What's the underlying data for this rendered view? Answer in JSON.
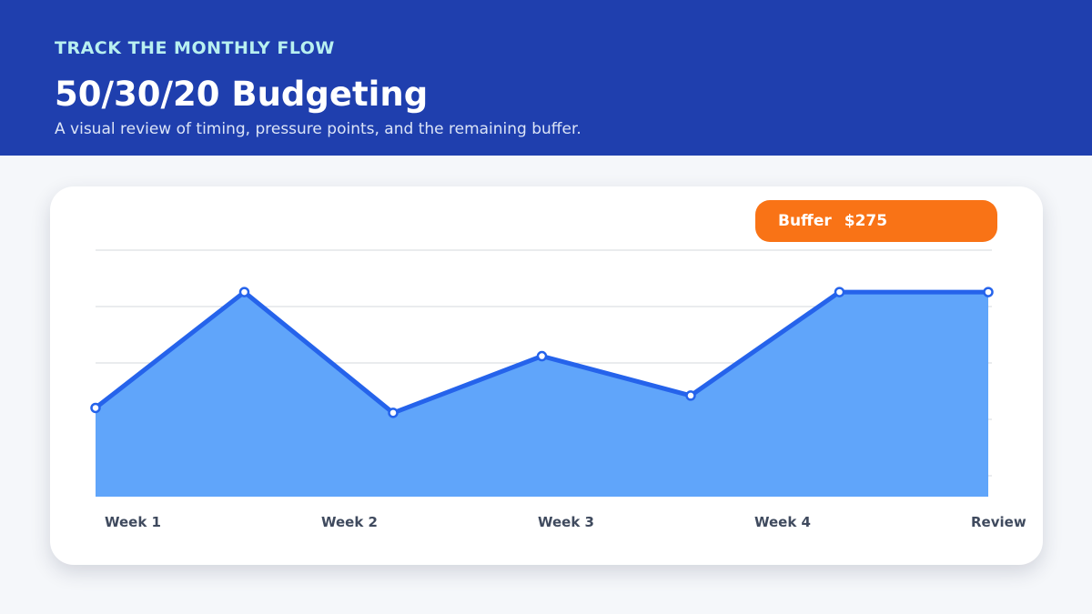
{
  "header": {
    "eyebrow": "TRACK THE MONTHLY FLOW",
    "title": "50/30/20 Budgeting",
    "subtitle": "A visual review of timing, pressure points, and the remaining buffer."
  },
  "badge": {
    "label": "Buffer",
    "value": "$275"
  },
  "colors": {
    "header_bg": "#1f3fae",
    "line": "#2563eb",
    "area": "#60a5fa",
    "badge": "#f97316"
  },
  "chart_data": {
    "type": "area",
    "x": [
      "",
      "",
      "",
      "",
      "",
      "",
      ""
    ],
    "tick_labels": [
      "Week 1",
      "Week 2",
      "Week 3",
      "Week 4",
      "Review"
    ],
    "values": [
      36,
      83,
      34,
      57,
      41,
      83,
      83
    ],
    "ylim": [
      0,
      100
    ],
    "grid": true
  }
}
